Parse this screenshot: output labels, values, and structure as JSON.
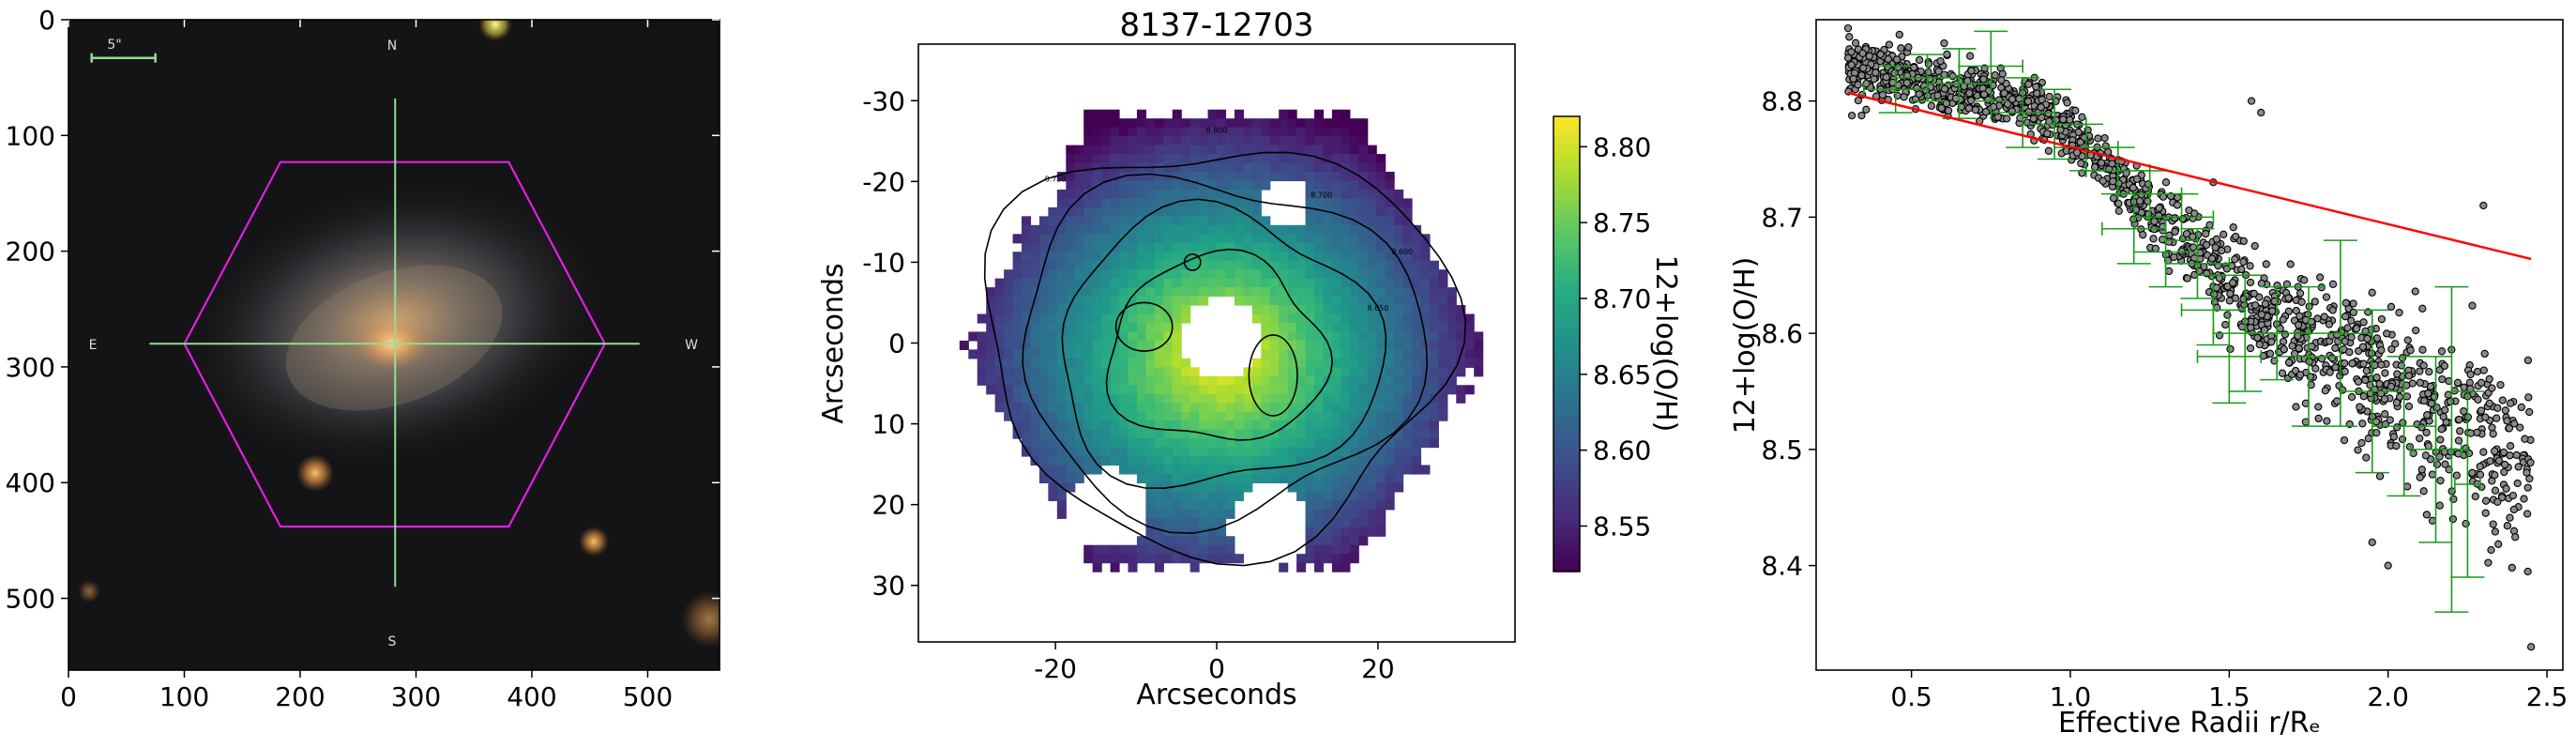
{
  "chart_data": [
    {
      "type": "image",
      "panel": "sdss-image",
      "x_ticks": [
        0,
        100,
        200,
        300,
        400,
        500
      ],
      "y_ticks": [
        0,
        100,
        200,
        300,
        400,
        500
      ],
      "xlim": [
        0,
        562
      ],
      "ylim": [
        562,
        0
      ],
      "scale_bar_label": "5\"",
      "compass": {
        "north": "N",
        "south": "S",
        "east": "E",
        "west": "W"
      },
      "colors": {
        "hexagon": "#e020e0",
        "crosshair": "#90e090",
        "scale_bar": "#90e090"
      },
      "hexagon_vertices": [
        [
          183,
          123
        ],
        [
          380,
          123
        ],
        [
          463,
          280
        ],
        [
          380,
          438
        ],
        [
          183,
          438
        ],
        [
          100,
          280
        ]
      ],
      "crosshair_center": [
        282,
        280
      ]
    },
    {
      "type": "heatmap",
      "panel": "metallicity-map",
      "title": "8137-12703",
      "xlabel": "Arcseconds",
      "ylabel": "Arcseconds",
      "x_ticks": [
        -20,
        0,
        20
      ],
      "y_ticks": [
        -30,
        -20,
        -10,
        0,
        10,
        20,
        30
      ],
      "xlim": [
        -37,
        37
      ],
      "ylim": [
        -37,
        37
      ],
      "colorbar": {
        "label": "12+log(O/H)",
        "ticks": [
          8.55,
          8.6,
          8.65,
          8.7,
          8.75,
          8.8
        ],
        "range": [
          8.52,
          8.82
        ],
        "colormap": "viridis"
      },
      "contour_labels": [
        "8.600",
        "8.650",
        "8.700",
        "8.750",
        "8.800"
      ]
    },
    {
      "type": "scatter",
      "panel": "gradient",
      "xlabel": "Effective Radii r/Rₑ",
      "ylabel": "12+log(O/H)",
      "x_ticks": [
        0.5,
        1.0,
        1.5,
        2.0,
        2.5
      ],
      "y_ticks": [
        8.4,
        8.5,
        8.6,
        8.7,
        8.8
      ],
      "xlim": [
        0.2,
        2.55
      ],
      "ylim": [
        8.31,
        8.87
      ],
      "fit_line": {
        "x": [
          0.3,
          2.45
        ],
        "y": [
          8.807,
          8.664
        ],
        "color": "#ff0000"
      },
      "binned_errorbars": [
        {
          "x": 0.45,
          "y": 8.81,
          "xerr": 0.1,
          "yerr": 0.02
        },
        {
          "x": 0.55,
          "y": 8.82,
          "xerr": 0.1,
          "yerr": 0.02
        },
        {
          "x": 0.65,
          "y": 8.815,
          "xerr": 0.1,
          "yerr": 0.03
        },
        {
          "x": 0.75,
          "y": 8.83,
          "xerr": 0.1,
          "yerr": 0.03
        },
        {
          "x": 0.85,
          "y": 8.79,
          "xerr": 0.1,
          "yerr": 0.03
        },
        {
          "x": 0.95,
          "y": 8.78,
          "xerr": 0.1,
          "yerr": 0.03
        },
        {
          "x": 1.05,
          "y": 8.76,
          "xerr": 0.1,
          "yerr": 0.02
        },
        {
          "x": 1.15,
          "y": 8.74,
          "xerr": 0.1,
          "yerr": 0.02
        },
        {
          "x": 1.2,
          "y": 8.69,
          "xerr": 0.1,
          "yerr": 0.03
        },
        {
          "x": 1.25,
          "y": 8.72,
          "xerr": 0.1,
          "yerr": 0.02
        },
        {
          "x": 1.3,
          "y": 8.67,
          "xerr": 0.1,
          "yerr": 0.03
        },
        {
          "x": 1.35,
          "y": 8.7,
          "xerr": 0.1,
          "yerr": 0.02
        },
        {
          "x": 1.4,
          "y": 8.66,
          "xerr": 0.1,
          "yerr": 0.03
        },
        {
          "x": 1.45,
          "y": 8.62,
          "xerr": 0.1,
          "yerr": 0.03
        },
        {
          "x": 1.5,
          "y": 8.58,
          "xerr": 0.1,
          "yerr": 0.04
        },
        {
          "x": 1.55,
          "y": 8.6,
          "xerr": 0.1,
          "yerr": 0.05
        },
        {
          "x": 1.65,
          "y": 8.6,
          "xerr": 0.1,
          "yerr": 0.04
        },
        {
          "x": 1.75,
          "y": 8.58,
          "xerr": 0.1,
          "yerr": 0.06
        },
        {
          "x": 1.85,
          "y": 8.6,
          "xerr": 0.1,
          "yerr": 0.08
        },
        {
          "x": 1.95,
          "y": 8.55,
          "xerr": 0.1,
          "yerr": 0.07
        },
        {
          "x": 2.05,
          "y": 8.52,
          "xerr": 0.1,
          "yerr": 0.06
        },
        {
          "x": 2.15,
          "y": 8.5,
          "xerr": 0.08,
          "yerr": 0.08
        },
        {
          "x": 2.2,
          "y": 8.5,
          "xerr": 0.05,
          "yerr": 0.14
        },
        {
          "x": 2.25,
          "y": 8.47,
          "xerr": 0.04,
          "yerr": 0.08
        }
      ],
      "colors": {
        "points": "#8a8a8a",
        "errorbars": "#1a9a1a"
      }
    }
  ]
}
